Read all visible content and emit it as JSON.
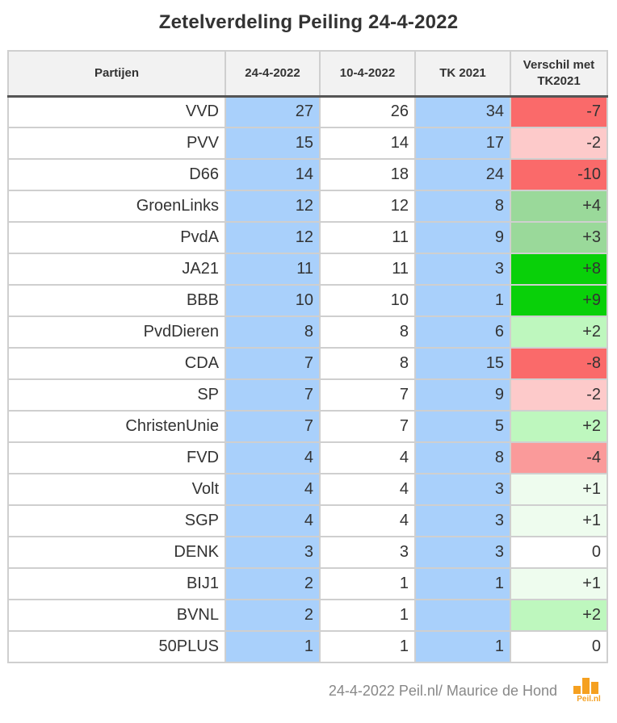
{
  "chart_data": {
    "type": "table",
    "title": "Zetelverdeling Peiling 24-4-2022",
    "columns": [
      "Partijen",
      "24-4-2022",
      "10-4-2022",
      "TK 2021",
      "Verschil met TK2021"
    ],
    "rows": [
      {
        "party": "VVD",
        "v1": "27",
        "v2": "26",
        "v3": "34",
        "diff": "-7",
        "diff_color": "#fa6a6a"
      },
      {
        "party": "PVV",
        "v1": "15",
        "v2": "14",
        "v3": "17",
        "diff": "-2",
        "diff_color": "#fdcaca"
      },
      {
        "party": "D66",
        "v1": "14",
        "v2": "18",
        "v3": "24",
        "diff": "-10",
        "diff_color": "#fa6a6a"
      },
      {
        "party": "GroenLinks",
        "v1": "12",
        "v2": "12",
        "v3": "8",
        "diff": "+4",
        "diff_color": "#9ad99a"
      },
      {
        "party": "PvdA",
        "v1": "12",
        "v2": "11",
        "v3": "9",
        "diff": "+3",
        "diff_color": "#9ad99a"
      },
      {
        "party": "JA21",
        "v1": "11",
        "v2": "11",
        "v3": "3",
        "diff": "+8",
        "diff_color": "#09d009"
      },
      {
        "party": "BBB",
        "v1": "10",
        "v2": "10",
        "v3": "1",
        "diff": "+9",
        "diff_color": "#09d009"
      },
      {
        "party": "PvdDieren",
        "v1": "8",
        "v2": "8",
        "v3": "6",
        "diff": "+2",
        "diff_color": "#bef7be"
      },
      {
        "party": "CDA",
        "v1": "7",
        "v2": "8",
        "v3": "15",
        "diff": "-8",
        "diff_color": "#fa6a6a"
      },
      {
        "party": "SP",
        "v1": "7",
        "v2": "7",
        "v3": "9",
        "diff": "-2",
        "diff_color": "#fdcaca"
      },
      {
        "party": "ChristenUnie",
        "v1": "7",
        "v2": "7",
        "v3": "5",
        "diff": "+2",
        "diff_color": "#bef7be"
      },
      {
        "party": "FVD",
        "v1": "4",
        "v2": "4",
        "v3": "8",
        "diff": "-4",
        "diff_color": "#fa9a9a"
      },
      {
        "party": "Volt",
        "v1": "4",
        "v2": "4",
        "v3": "3",
        "diff": "+1",
        "diff_color": "#eefcee"
      },
      {
        "party": "SGP",
        "v1": "4",
        "v2": "4",
        "v3": "3",
        "diff": "+1",
        "diff_color": "#eefcee"
      },
      {
        "party": "DENK",
        "v1": "3",
        "v2": "3",
        "v3": "3",
        "diff": "0",
        "diff_color": "#ffffff"
      },
      {
        "party": "BIJ1",
        "v1": "2",
        "v2": "1",
        "v3": "1",
        "diff": "+1",
        "diff_color": "#eefcee"
      },
      {
        "party": "BVNL",
        "v1": "2",
        "v2": "1",
        "v3": "",
        "diff": "+2",
        "diff_color": "#bef7be"
      },
      {
        "party": "50PLUS",
        "v1": "1",
        "v2": "1",
        "v3": "1",
        "diff": "0",
        "diff_color": "#ffffff"
      }
    ]
  },
  "header": {
    "col1": "Partijen",
    "col2": "24-4-2022",
    "col3": "10-4-2022",
    "col4": "TK 2021",
    "col5_line1": "Verschil met",
    "col5_line2": "TK2021"
  },
  "footer": {
    "source": "24-4-2022 Peil.nl/ Maurice de Hond",
    "logo_text": "Peil.nl"
  },
  "colors": {
    "blue_column": "#a9d0fb",
    "logo": "#f5a020"
  }
}
